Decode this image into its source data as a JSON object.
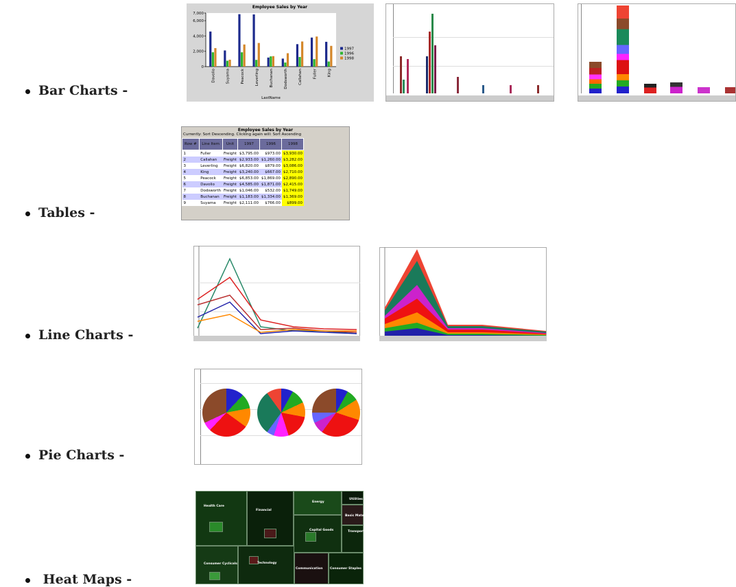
{
  "items": [
    {
      "label": "Bar Charts -"
    },
    {
      "label": "Tables -"
    },
    {
      "label": "Line Charts -"
    },
    {
      "label": "Pie Charts -"
    },
    {
      "label": "Heat Maps -"
    }
  ],
  "chart_data": {
    "type": "bar",
    "title": "Employee Sales by Year",
    "x_label": "LastName",
    "categories": [
      "Davolio",
      "Suyama",
      "Peacock",
      "Leverling",
      "Buchanan",
      "Dodsworth",
      "Callahan",
      "Fuller",
      "King"
    ],
    "series": [
      {
        "name": "1997",
        "color": "#1c2a8c",
        "values": [
          4585,
          2111,
          6853,
          6820,
          1183,
          1046,
          2933,
          3795,
          3240
        ]
      },
      {
        "name": "1996",
        "color": "#2fb52f",
        "values": [
          1871,
          766,
          1869,
          879,
          1334,
          532,
          1260,
          973,
          667
        ]
      },
      {
        "name": "1998",
        "color": "#d4872a",
        "values": [
          2415,
          899,
          2890,
          3086,
          1369,
          1749,
          3282,
          3930,
          2710
        ]
      }
    ],
    "ylim": [
      0,
      7000
    ],
    "yticks": [
      0,
      {
        "value": 2000,
        "label": "2,000"
      },
      {
        "value": 4000,
        "label": "4,000"
      },
      {
        "value": 6000,
        "label": "6,000"
      },
      {
        "value": 7000,
        "label": "7,000"
      }
    ],
    "legend": "right"
  },
  "table": {
    "title": "Employee Sales by Year",
    "subtitle": "Currently: Sort Descending. Clicking again will: Sort Ascending",
    "headers": [
      "Row #",
      "Line Item",
      "Unit",
      "1997",
      "1996",
      "1998"
    ],
    "rows": [
      [
        "1",
        "Fuller",
        "Freight",
        "$3,795.00",
        "$973.00",
        "$3,930.00"
      ],
      [
        "2",
        "Callahan",
        "Freight",
        "$2,933.00",
        "$1,260.00",
        "$3,282.00"
      ],
      [
        "3",
        "Leverling",
        "Freight",
        "$6,820.00",
        "$879.00",
        "$3,086.00"
      ],
      [
        "4",
        "King",
        "Freight",
        "$3,240.00",
        "$667.00",
        "$2,710.00"
      ],
      [
        "5",
        "Peacock",
        "Freight",
        "$6,853.00",
        "$1,869.00",
        "$2,890.00"
      ],
      [
        "6",
        "Davolio",
        "Freight",
        "$4,585.00",
        "$1,871.00",
        "$2,415.00"
      ],
      [
        "7",
        "Dodsworth",
        "Freight",
        "$1,046.00",
        "$532.00",
        "$1,749.00"
      ],
      [
        "8",
        "Buchanan",
        "Freight",
        "$1,183.00",
        "$1,334.00",
        "$1,369.00"
      ],
      [
        "9",
        "Suyama",
        "Freight",
        "$2,111.00",
        "$766.00",
        "$899.00"
      ]
    ]
  },
  "heat_map": {
    "labels": [
      "Health Care",
      "Financial",
      "Energy",
      "Utilities",
      "Basic Mate...",
      "Capital Goods",
      "Transport",
      "Consumer Cyclicals",
      "Technology",
      "Communication",
      "Consumer Staples"
    ]
  }
}
